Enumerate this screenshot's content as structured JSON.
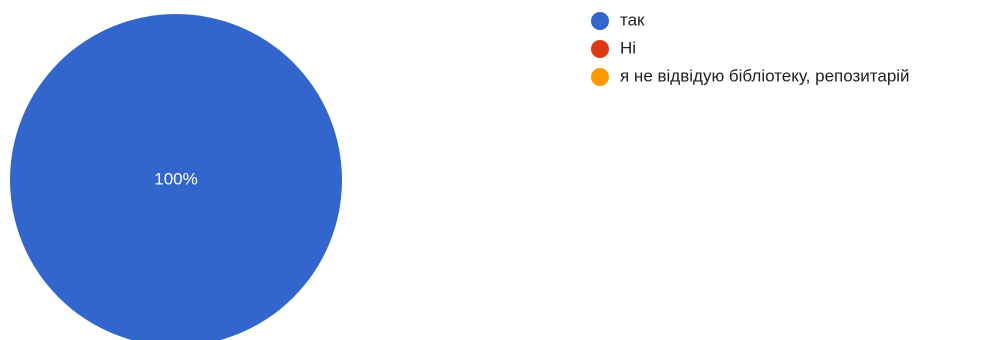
{
  "chart_data": {
    "type": "pie",
    "categories": [
      "так",
      "Ні",
      "я не відвідую бібліотеку, репозитарій"
    ],
    "values": [
      100,
      0,
      0
    ],
    "colors": [
      "#3366cc",
      "#dc3912",
      "#ff9900"
    ],
    "data_labels": [
      "100%",
      "",
      ""
    ],
    "legend_position": "right-top"
  }
}
